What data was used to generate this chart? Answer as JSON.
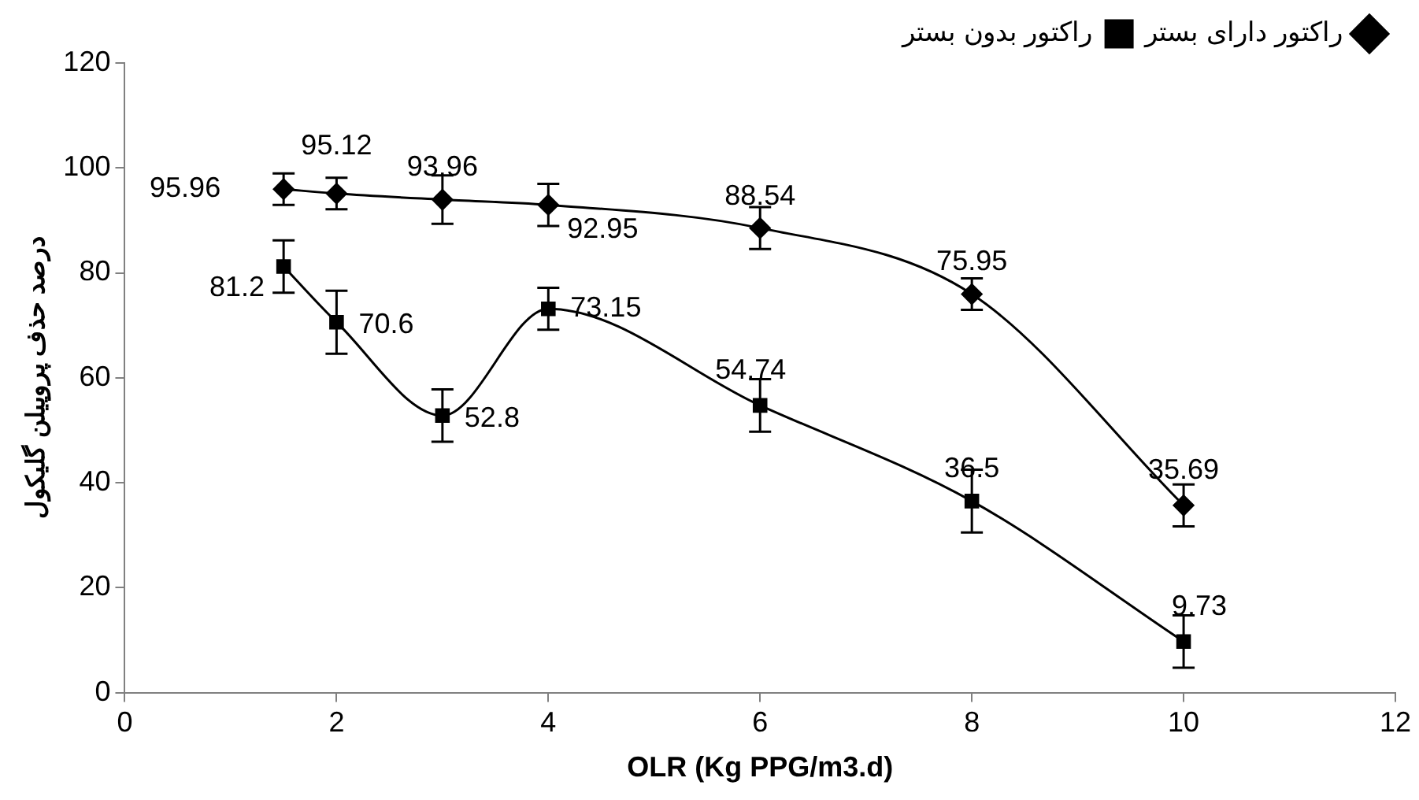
{
  "chart_data": {
    "type": "line",
    "xlabel": "OLR (Kg PPG/m3.d)",
    "ylabel": "درصد حذف پروپیلن گلیکول",
    "x": [
      1.5,
      2,
      3,
      4,
      6,
      8,
      10
    ],
    "series": [
      {
        "name": "راکتور دارای بستر",
        "color": "#000000",
        "marker": "diamond",
        "values": [
          95.96,
          95.12,
          93.96,
          92.95,
          88.54,
          75.95,
          35.69
        ],
        "errors": [
          3,
          3,
          4.6,
          4,
          4,
          3,
          4
        ]
      },
      {
        "name": "راکتور بدون بستر",
        "color": "#000000",
        "marker": "square",
        "values": [
          81.2,
          70.6,
          52.8,
          73.15,
          54.74,
          36.5,
          9.73
        ],
        "errors": [
          5,
          6,
          5,
          4,
          5,
          6,
          5
        ]
      }
    ],
    "xlim": [
      0,
      12
    ],
    "xticks": [
      0,
      2,
      4,
      6,
      8,
      10,
      12
    ],
    "ylim": [
      0,
      120
    ],
    "yticks": [
      0,
      20,
      40,
      60,
      80,
      100,
      120
    ],
    "grid": false,
    "legend": "top right",
    "data_labels": true,
    "line_style": "solid"
  }
}
